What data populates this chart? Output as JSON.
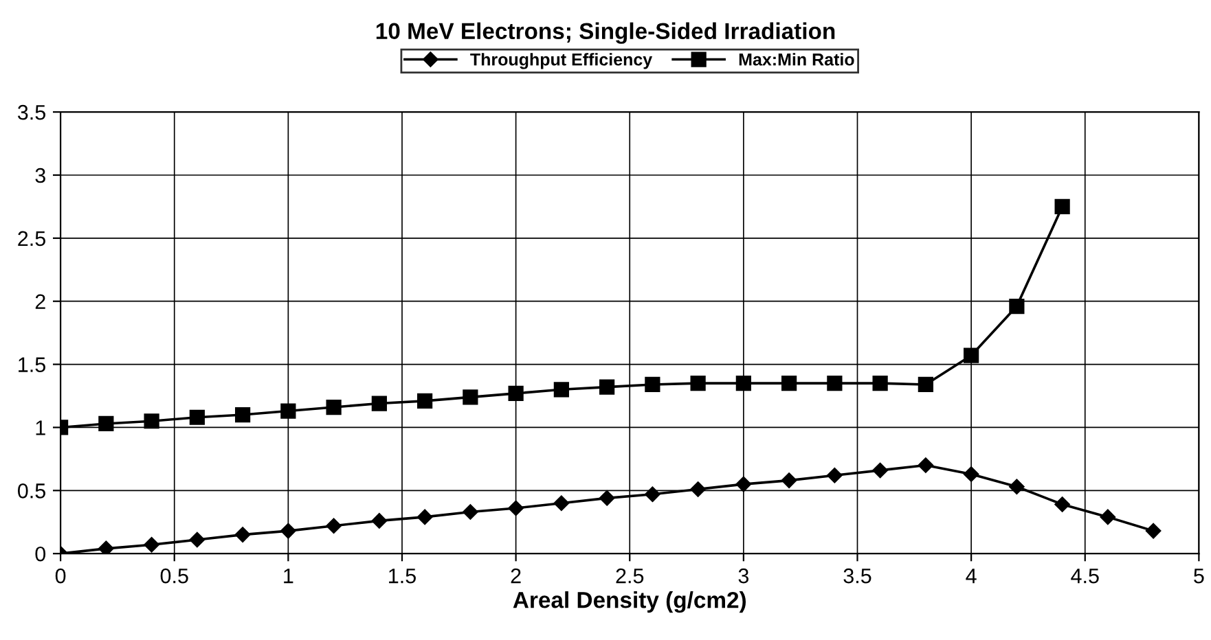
{
  "chart_data": {
    "type": "line",
    "title": "10 MeV Electrons; Single-Sided Irradiation",
    "xlabel": "Areal Density (g/cm2)",
    "series": [
      {
        "name": "Throughput Efficiency",
        "color": "#000000",
        "marker": "diamond",
        "x": [
          0,
          0.2,
          0.4,
          0.6,
          0.8,
          1.0,
          1.2,
          1.4,
          1.6,
          1.8,
          2.0,
          2.2,
          2.4,
          2.6,
          2.8,
          3.0,
          3.2,
          3.4,
          3.6,
          3.8,
          4.0,
          4.2,
          4.4,
          4.6,
          4.8
        ],
        "values": [
          0,
          0.04,
          0.07,
          0.11,
          0.15,
          0.18,
          0.22,
          0.26,
          0.29,
          0.33,
          0.36,
          0.4,
          0.44,
          0.47,
          0.51,
          0.55,
          0.58,
          0.62,
          0.66,
          0.7,
          0.63,
          0.53,
          0.39,
          0.29,
          0.18
        ]
      },
      {
        "name": "Max:Min Ratio",
        "color": "#000000",
        "marker": "square",
        "x": [
          0,
          0.2,
          0.4,
          0.6,
          0.8,
          1.0,
          1.2,
          1.4,
          1.6,
          1.8,
          2.0,
          2.2,
          2.4,
          2.6,
          2.8,
          3.0,
          3.2,
          3.4,
          3.6,
          3.8,
          4.0,
          4.2,
          4.4
        ],
        "values": [
          1.0,
          1.03,
          1.05,
          1.08,
          1.1,
          1.13,
          1.16,
          1.19,
          1.21,
          1.24,
          1.27,
          1.3,
          1.32,
          1.34,
          1.35,
          1.35,
          1.35,
          1.35,
          1.35,
          1.34,
          1.57,
          1.96,
          2.75
        ]
      }
    ],
    "xlim": [
      0,
      5
    ],
    "xticks": [
      0,
      0.5,
      1,
      1.5,
      2,
      2.5,
      3,
      3.5,
      4,
      4.5,
      5
    ],
    "ylim": [
      0,
      3.5
    ],
    "yticks": [
      0,
      0.5,
      1,
      1.5,
      2,
      2.5,
      3,
      3.5
    ],
    "grid": true,
    "legend": "top",
    "line_style": "solid"
  }
}
